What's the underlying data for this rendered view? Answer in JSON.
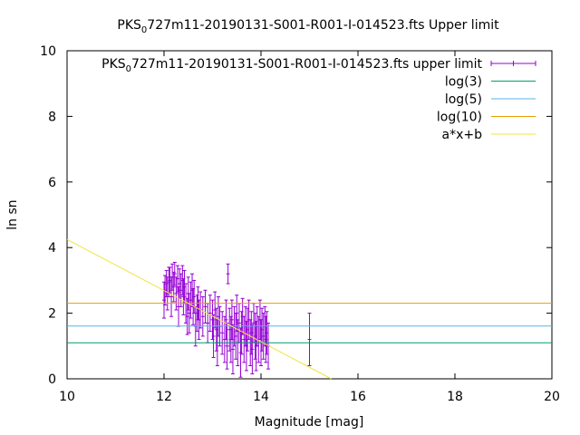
{
  "chart_data": {
    "type": "scatter",
    "title": {
      "prefix": "PKS",
      "subscript": "0",
      "suffix": "727m11-20190131-S001-R001-I-014523.fts Upper limit"
    },
    "xlabel": "Magnitude [mag]",
    "ylabel": "ln sn",
    "xlim": [
      10,
      20
    ],
    "ylim": [
      0,
      10
    ],
    "xticks": [
      10,
      12,
      14,
      16,
      18,
      20
    ],
    "yticks": [
      0,
      2,
      4,
      6,
      8,
      10
    ],
    "grid": false,
    "legend_position": "top-right",
    "series": [
      {
        "name_parts": {
          "prefix": "PKS",
          "subscript": "0",
          "suffix": "727m11-20190131-S001-R001-I-014523.fts upper limit"
        },
        "kind": "errorbar",
        "color": "#9400d3",
        "points": [
          [
            12.0,
            2.4,
            0.55
          ],
          [
            12.02,
            2.7,
            0.45
          ],
          [
            12.05,
            2.9,
            0.4
          ],
          [
            12.07,
            2.6,
            0.5
          ],
          [
            12.1,
            2.95,
            0.45
          ],
          [
            12.12,
            3.0,
            0.4
          ],
          [
            12.15,
            2.5,
            0.6
          ],
          [
            12.17,
            3.1,
            0.4
          ],
          [
            12.2,
            2.8,
            0.45
          ],
          [
            12.22,
            3.2,
            0.35
          ],
          [
            12.25,
            2.6,
            0.5
          ],
          [
            12.28,
            3.05,
            0.4
          ],
          [
            12.3,
            2.2,
            0.6
          ],
          [
            12.32,
            2.9,
            0.45
          ],
          [
            12.35,
            2.7,
            0.5
          ],
          [
            12.38,
            3.0,
            0.45
          ],
          [
            12.4,
            2.5,
            0.55
          ],
          [
            12.42,
            2.8,
            0.5
          ],
          [
            12.45,
            2.3,
            0.6
          ],
          [
            12.48,
            1.9,
            0.55
          ],
          [
            12.5,
            2.6,
            0.5
          ],
          [
            12.52,
            2.0,
            0.6
          ],
          [
            12.55,
            2.4,
            0.55
          ],
          [
            12.58,
            2.7,
            0.5
          ],
          [
            12.6,
            2.2,
            0.55
          ],
          [
            12.62,
            2.5,
            0.5
          ],
          [
            12.65,
            1.6,
            0.6
          ],
          [
            12.68,
            2.0,
            0.55
          ],
          [
            12.7,
            2.3,
            0.5
          ],
          [
            12.72,
            1.8,
            0.6
          ],
          [
            12.75,
            2.1,
            0.55
          ],
          [
            12.8,
            1.9,
            0.6
          ],
          [
            12.85,
            2.2,
            0.5
          ],
          [
            12.9,
            1.7,
            0.6
          ],
          [
            12.95,
            2.0,
            0.55
          ],
          [
            13.0,
            1.8,
            0.6
          ],
          [
            13.02,
            1.3,
            0.65
          ],
          [
            13.05,
            2.1,
            0.55
          ],
          [
            13.08,
            1.5,
            0.65
          ],
          [
            13.1,
            1.1,
            0.7
          ],
          [
            13.12,
            1.9,
            0.6
          ],
          [
            13.15,
            1.6,
            0.6
          ],
          [
            13.2,
            1.4,
            0.65
          ],
          [
            13.25,
            1.2,
            0.7
          ],
          [
            13.28,
            1.8,
            0.6
          ],
          [
            13.3,
            1.0,
            0.7
          ],
          [
            13.32,
            3.2,
            0.3
          ],
          [
            13.35,
            1.5,
            0.65
          ],
          [
            13.38,
            1.2,
            0.7
          ],
          [
            13.4,
            1.8,
            0.6
          ],
          [
            13.42,
            0.9,
            0.75
          ],
          [
            13.45,
            1.6,
            0.6
          ],
          [
            13.48,
            1.3,
            0.7
          ],
          [
            13.5,
            2.0,
            0.55
          ],
          [
            13.52,
            1.1,
            0.7
          ],
          [
            13.55,
            1.7,
            0.6
          ],
          [
            13.58,
            0.8,
            0.75
          ],
          [
            13.6,
            1.4,
            0.65
          ],
          [
            13.62,
            1.9,
            0.55
          ],
          [
            13.65,
            1.2,
            0.7
          ],
          [
            13.68,
            1.6,
            0.6
          ],
          [
            13.7,
            1.0,
            0.75
          ],
          [
            13.72,
            1.5,
            0.65
          ],
          [
            13.75,
            1.8,
            0.6
          ],
          [
            13.78,
            1.1,
            0.7
          ],
          [
            13.8,
            1.4,
            0.65
          ],
          [
            13.82,
            0.9,
            0.75
          ],
          [
            13.85,
            1.7,
            0.6
          ],
          [
            13.88,
            1.3,
            0.7
          ],
          [
            13.9,
            1.0,
            0.75
          ],
          [
            13.92,
            1.6,
            0.6
          ],
          [
            13.95,
            1.2,
            0.7
          ],
          [
            13.98,
            1.8,
            0.6
          ],
          [
            14.0,
            1.1,
            0.7
          ],
          [
            14.02,
            1.5,
            0.65
          ],
          [
            14.05,
            1.3,
            0.7
          ],
          [
            14.08,
            1.6,
            0.6
          ],
          [
            14.1,
            1.2,
            0.7
          ],
          [
            14.12,
            1.4,
            0.65
          ],
          [
            14.15,
            1.0,
            0.7
          ],
          [
            15.0,
            1.2,
            0.8
          ]
        ]
      },
      {
        "name": "log(3)",
        "kind": "hline",
        "y": 1.0986,
        "color": "#009e73"
      },
      {
        "name": "log(5)",
        "kind": "hline",
        "y": 1.6094,
        "color": "#56b4e9"
      },
      {
        "name": "log(10)",
        "kind": "hline",
        "y": 2.3026,
        "color": "#e69f00"
      },
      {
        "name": "a*x+b",
        "kind": "fit",
        "slope": -0.78,
        "intercept": 12.05,
        "color": "#f0e442"
      }
    ]
  }
}
